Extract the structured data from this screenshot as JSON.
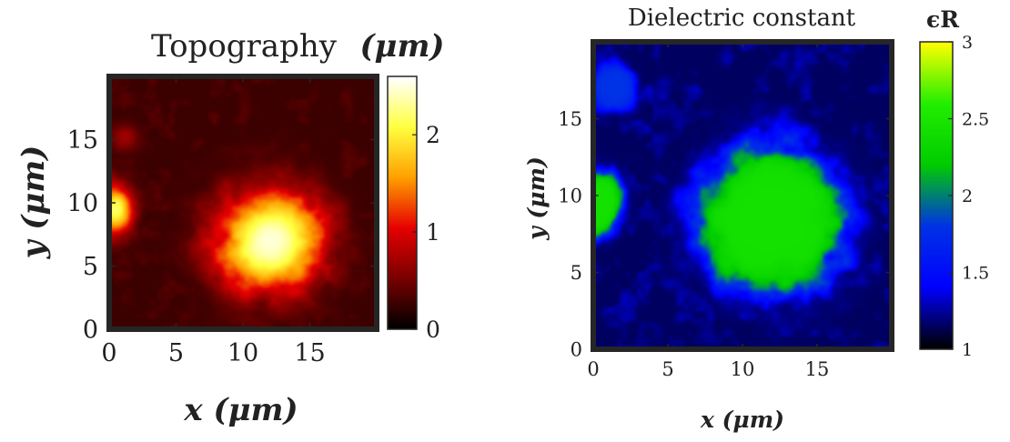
{
  "chart_data": [
    {
      "type": "heatmap",
      "title": "Topography",
      "colorbar_label": "(μm)",
      "xlabel": "x (μm)",
      "ylabel": "y (μm)",
      "xlim": [
        0,
        20
      ],
      "ylim": [
        0,
        20
      ],
      "xticks": [
        0,
        5,
        10,
        15
      ],
      "yticks": [
        0,
        5,
        10,
        15
      ],
      "colorbar_range": [
        0,
        2.6
      ],
      "colorbar_ticks": [
        0,
        1,
        2
      ],
      "colormap": "hot",
      "colormap_colors": [
        "#000000",
        "#7a0000",
        "#e60000",
        "#ffa000",
        "#ffff40",
        "#ffffff"
      ],
      "background_level": 0.25,
      "features": [
        {
          "shape": "blob",
          "center": [
            12,
            7
          ],
          "radius_x": 4.8,
          "radius_y": 4.8,
          "peak": 2.5
        },
        {
          "shape": "blob",
          "center": [
            0.5,
            9.5
          ],
          "radius_x": 1.6,
          "radius_y": 2.4,
          "peak": 2.2
        },
        {
          "shape": "blob",
          "center": [
            1.2,
            15.2
          ],
          "radius_x": 1.3,
          "radius_y": 1.3,
          "peak": 0.7
        }
      ]
    },
    {
      "type": "heatmap",
      "title": "Dielectric constant",
      "colorbar_label": "ϵR",
      "xlabel": "x (μm)",
      "ylabel": "y (μm)",
      "xlim": [
        0,
        20
      ],
      "ylim": [
        0,
        20
      ],
      "xticks": [
        0,
        5,
        10,
        15
      ],
      "yticks": [
        0,
        5,
        10,
        15
      ],
      "colorbar_range": [
        1,
        3
      ],
      "colorbar_ticks": [
        1,
        1.5,
        2,
        2.5,
        3
      ],
      "colormap": "black-blue-green-yellow",
      "colormap_colors": [
        "#000000",
        "#0000ff",
        "#0032e6",
        "#00cc00",
        "#22ee00",
        "#ffff00"
      ],
      "background_level": 1.15,
      "features": [
        {
          "shape": "blob",
          "center": [
            12,
            8.5
          ],
          "radius_x": 6.0,
          "radius_y": 6.0,
          "peak": 2.45
        },
        {
          "shape": "blob",
          "center": [
            0.5,
            9.5
          ],
          "radius_x": 1.8,
          "radius_y": 2.6,
          "peak": 2.45
        },
        {
          "shape": "blob",
          "center": [
            1.5,
            17
          ],
          "radius_x": 1.8,
          "radius_y": 2.0,
          "peak": 1.8
        }
      ]
    }
  ]
}
